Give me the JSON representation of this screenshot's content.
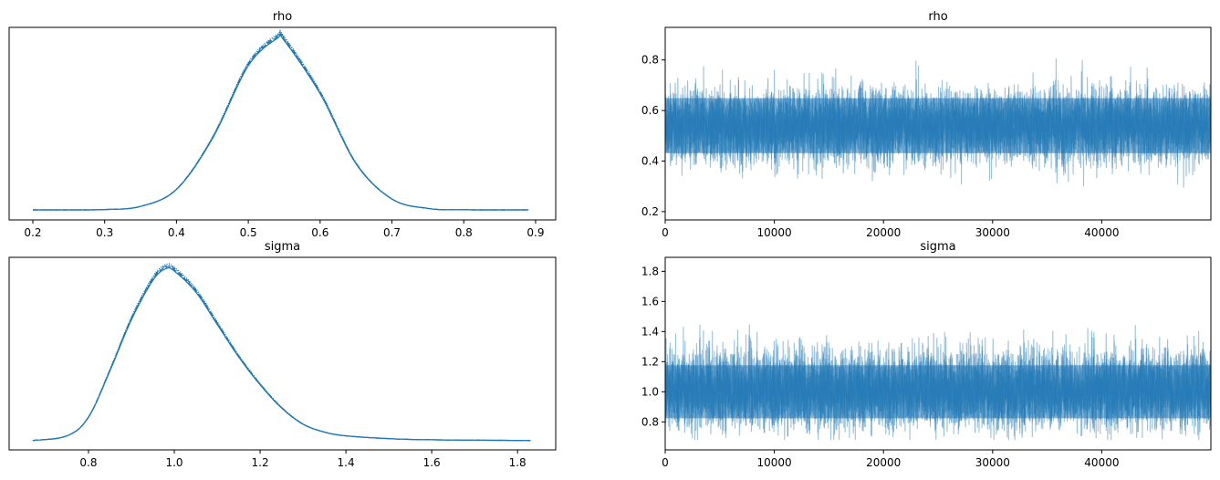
{
  "chart_data": [
    {
      "type": "line",
      "kind": "density",
      "title": "rho",
      "xlim": [
        0.167,
        0.928
      ],
      "ylim": [
        -0.34,
        6.18
      ],
      "xticks": [
        0.2,
        0.3,
        0.4,
        0.5,
        0.6,
        0.7,
        0.8,
        0.9
      ],
      "xtick_labels": [
        "0.2",
        "0.3",
        "0.4",
        "0.5",
        "0.6",
        "0.7",
        "0.8",
        "0.9"
      ],
      "yticks_visible": false,
      "color": "#1f77b4",
      "x": [
        0.2,
        0.25,
        0.3,
        0.35,
        0.4,
        0.45,
        0.5,
        0.54,
        0.55,
        0.6,
        0.65,
        0.7,
        0.75,
        0.8,
        0.89
      ],
      "density": [
        0.0,
        0.001,
        0.012,
        0.12,
        0.7,
        2.44,
        4.94,
        5.87,
        5.8,
        3.98,
        1.58,
        0.37,
        0.05,
        0.004,
        0.0
      ]
    },
    {
      "type": "line",
      "kind": "trace",
      "title": "rho",
      "xlim": [
        0,
        50000
      ],
      "ylim": [
        0.167,
        0.929
      ],
      "xticks": [
        0,
        10000,
        20000,
        30000,
        40000
      ],
      "xtick_labels": [
        "0",
        "10000",
        "20000",
        "30000",
        "40000"
      ],
      "yticks": [
        0.2,
        0.4,
        0.6,
        0.8
      ],
      "ytick_labels": [
        "0.2",
        "0.4",
        "0.6",
        "0.8"
      ],
      "color": "#1f77b4",
      "draws": 50000,
      "center": 0.54,
      "spread_sd": 0.068,
      "observed_range": [
        0.21,
        0.89
      ]
    },
    {
      "type": "line",
      "kind": "density",
      "title": "sigma",
      "xlim": [
        0.615,
        1.889
      ],
      "ylim": [
        -0.2,
        3.9
      ],
      "xticks": [
        0.8,
        1.0,
        1.2,
        1.4,
        1.6,
        1.8
      ],
      "xtick_labels": [
        "0.8",
        "1.0",
        "1.2",
        "1.4",
        "1.6",
        "1.8"
      ],
      "yticks_visible": false,
      "color": "#1f77b4",
      "x": [
        0.67,
        0.75,
        0.8,
        0.85,
        0.9,
        0.95,
        0.98,
        1.0,
        1.05,
        1.1,
        1.15,
        1.2,
        1.25,
        1.3,
        1.35,
        1.4,
        1.5,
        1.6,
        1.83
      ],
      "density": [
        0.0,
        0.1,
        0.5,
        1.5,
        2.6,
        3.45,
        3.7,
        3.65,
        3.2,
        2.5,
        1.8,
        1.2,
        0.7,
        0.35,
        0.18,
        0.1,
        0.04,
        0.015,
        0.0
      ]
    },
    {
      "type": "line",
      "kind": "trace",
      "title": "sigma",
      "xlim": [
        0,
        50000
      ],
      "ylim": [
        0.614,
        1.893
      ],
      "xticks": [
        0,
        10000,
        20000,
        30000,
        40000
      ],
      "xtick_labels": [
        "0",
        "10000",
        "20000",
        "30000",
        "40000"
      ],
      "yticks": [
        0.8,
        1.0,
        1.2,
        1.4,
        1.6,
        1.8
      ],
      "ytick_labels": [
        "0.8",
        "1.0",
        "1.2",
        "1.4",
        "1.6",
        "1.8"
      ],
      "color": "#1f77b4",
      "draws": 50000,
      "center": 1.0,
      "spread_sd": 0.11,
      "observed_range": [
        0.68,
        1.83
      ]
    }
  ]
}
